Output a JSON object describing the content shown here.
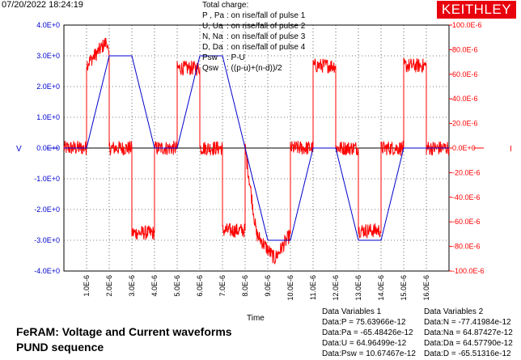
{
  "header": {
    "timestamp": "07/20/2022 18:24:19",
    "brand": "KEITHLEY"
  },
  "legend": {
    "title": "Total charge:",
    "lines": [
      {
        "key": "P , Pa",
        "desc": ":  on rise/fall of pulse 1"
      },
      {
        "key": "U, Ua",
        "desc": ":  on rise/fall of pulse 2"
      },
      {
        "key": "N, Na",
        "desc": ":  on rise/fall of pulse 3"
      },
      {
        "key": "D, Da",
        "desc": ":  on rise/fall of pulse 4"
      },
      {
        "key": "Psw",
        "desc": ":  P-U"
      },
      {
        "key": "Qsw",
        "desc": ":  ((p-u)+(n-d))/2"
      }
    ]
  },
  "footer": {
    "title_line1": "FeRAM: Voltage and Current waveforms",
    "title_line2": "PUND sequence"
  },
  "data_variables": {
    "col1_title": "Data Variables 1",
    "col2_title": "Data Variables 2",
    "col1": [
      "Data:P = 75.63966e-12",
      "Data:Pa = -65.48426e-12",
      "Data:U = 64.96499e-12",
      "Data:Psw = 10.67467e-12"
    ],
    "col2": [
      "Data:N = -77.41984e-12",
      "Data:Na = 64.87427e-12",
      "Data:Da = 64.57790e-12",
      "Data:D = -65.51316e-12"
    ]
  },
  "chart_data": {
    "type": "line",
    "xlabel": "Time",
    "ylabel_left": "V",
    "ylabel_right": "I",
    "xlim": [
      0,
      1.7e-05
    ],
    "ylim_left": [
      -4,
      4
    ],
    "ylim_right": [
      -100,
      100
    ],
    "x_ticks": [
      "1.0E-6",
      "2.0E-6",
      "3.0E-6",
      "4.0E-6",
      "5.0E-6",
      "6.0E-6",
      "7.0E-6",
      "8.0E-6",
      "9.0E-6",
      "10.0E-6",
      "11.0E-6",
      "12.0E-6",
      "13.0E-6",
      "14.0E-6",
      "15.0E-6",
      "16.0E-6"
    ],
    "y_ticks_left": [
      "4.0E+0",
      "3.0E+0",
      "2.0E+0",
      "1.0E+0",
      "0.0E+0",
      "-1.0E+0",
      "-2.0E+0",
      "-3.0E+0",
      "-4.0E+0"
    ],
    "y_ticks_right": [
      "100.0E-6",
      "80.0E-6",
      "60.0E-6",
      "40.0E-6",
      "20.0E-6",
      "0.0E+0",
      "-20.0E-6",
      "-40.0E-6",
      "-60.0E-6",
      "-80.0E-6",
      "-100.0E-6"
    ],
    "grid": true,
    "colors": {
      "voltage": "#0000cc",
      "current": "#ff0000",
      "grid": "#000000",
      "right_axis": "#ff0000",
      "left_axis": "#0000cc"
    },
    "series": [
      {
        "axis": "left",
        "x_us": [
          0,
          1,
          2,
          3,
          4,
          5,
          6,
          7,
          8,
          9,
          10,
          11,
          12,
          13,
          14,
          15,
          16,
          17
        ],
        "values": [
          0,
          0,
          3,
          3,
          0,
          0,
          3,
          3,
          0,
          -3,
          -3,
          0,
          0,
          -3,
          -3,
          0,
          0,
          0
        ]
      },
      {
        "axis": "right",
        "x_us": [
          0,
          1,
          1,
          1.4,
          1.9,
          2,
          2,
          3,
          3,
          4,
          4,
          5,
          5,
          6,
          6,
          7,
          7,
          8,
          8,
          8.5,
          9.3,
          10,
          10,
          11,
          11,
          12,
          12,
          13,
          13,
          14,
          14,
          15,
          15,
          16,
          16,
          17
        ],
        "values": [
          0,
          0,
          68,
          76,
          87,
          70,
          0,
          0,
          -69,
          -69,
          0,
          0,
          65,
          65,
          0,
          0,
          -67,
          -67,
          0,
          -70,
          -90,
          -70,
          0,
          0,
          67,
          67,
          0,
          0,
          -67,
          -67,
          0,
          0,
          67,
          67,
          0,
          0
        ]
      }
    ]
  }
}
